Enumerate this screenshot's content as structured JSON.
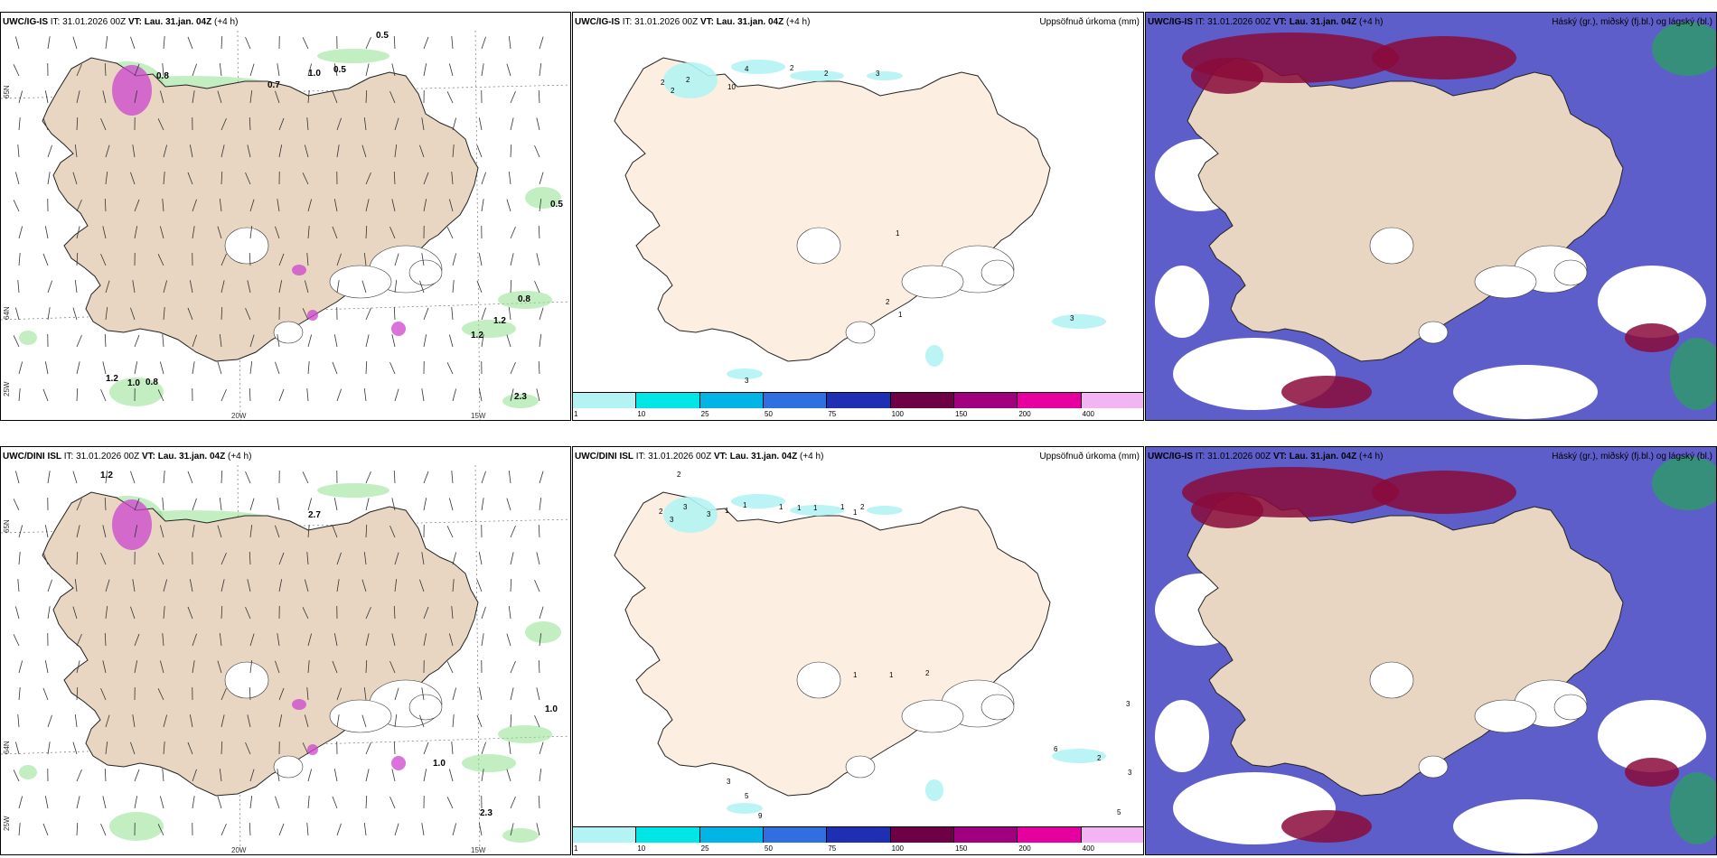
{
  "rows": [
    {
      "model": "UWC/IG-IS",
      "panels": [
        {
          "model": "UWC/IG-IS",
          "it": "IT: 31.01.2026 00Z",
          "vt": "VT: Lau. 31.jan. 04Z",
          "lead": "(+4 h)",
          "title": ""
        },
        {
          "model": "UWC/IG-IS",
          "it": "IT: 31.01.2026 00Z",
          "vt": "VT: Lau. 31.jan. 04Z",
          "lead": "(+4 h)",
          "title": "Uppsöfnuð úrkoma (mm)"
        },
        {
          "model": "UWC/IG-IS",
          "it": "IT: 31.01.2026 00Z",
          "vt": "VT: Lau. 31.jan. 04Z",
          "lead": "(+4 h)",
          "title": "Háský (gr.), miðský (fj.bl.) og lágský (bl.)"
        }
      ],
      "wind_labels": [
        "0.5",
        "1.0",
        "0.5",
        "0.8",
        "0.7",
        "0.5",
        "0.8",
        "1.2",
        "1.2",
        "1.2",
        "1.0",
        "0.8",
        "2.3"
      ],
      "precip_labels": [
        "4",
        "2",
        "2",
        "3",
        "2",
        "2",
        "10",
        "2",
        "1",
        "2",
        "1",
        "3",
        "3"
      ]
    },
    {
      "model": "UWC/DINI ISL",
      "panels": [
        {
          "model": "UWC/DINI ISL",
          "it": "IT: 31.01.2026 00Z",
          "vt": "VT: Lau. 31.jan. 04Z",
          "lead": "(+4 h)",
          "title": ""
        },
        {
          "model": "UWC/DINI ISL",
          "it": "IT: 31.01.2026 00Z",
          "vt": "VT: Lau. 31.jan. 04Z",
          "lead": "(+4 h)",
          "title": "Uppsöfnuð úrkoma (mm)"
        },
        {
          "model": "UWC/IG-IS",
          "it": "IT: 31.01.2026 00Z",
          "vt": "VT: Lau. 31.jan. 04Z",
          "lead": "(+4 h)",
          "title": "Háský (gr.), miðský (fj.bl.) og lágský (bl.)"
        }
      ],
      "wind_labels": [
        "1.2",
        "2.7",
        "1.0",
        "1.0",
        "2.3"
      ],
      "precip_labels": [
        "2",
        "2",
        "3",
        "3",
        "1",
        "1",
        "1",
        "1",
        "1",
        "2",
        "1",
        "1",
        "3",
        "1",
        "1",
        "2",
        "6",
        "3",
        "2",
        "5",
        "3",
        "3",
        "5",
        "9"
      ]
    }
  ],
  "geo_labels": {
    "lat_a": "65N",
    "lat_b": "64N",
    "lon_a": "25W",
    "lon_b": "20W",
    "lon_c": "15W"
  },
  "colorbar": {
    "ticks": [
      "1",
      "10",
      "25",
      "50",
      "75",
      "100",
      "150",
      "200",
      "400"
    ],
    "colors": [
      "#b4f3f3",
      "#00e6e6",
      "#00b4e6",
      "#2f6fe0",
      "#1f2fb4",
      "#6e0046",
      "#a00080",
      "#e600a0",
      "#f2b4f2"
    ]
  },
  "colors": {
    "land": "#e8d6c2",
    "land_light": "#fcefe2",
    "precip_green": "#8fe08f",
    "precip_purple": "#cc44cc",
    "cloud_low": "#3a3ac0",
    "cloud_high": "#8a0a3a",
    "cloud_mid": "#2aa060"
  }
}
